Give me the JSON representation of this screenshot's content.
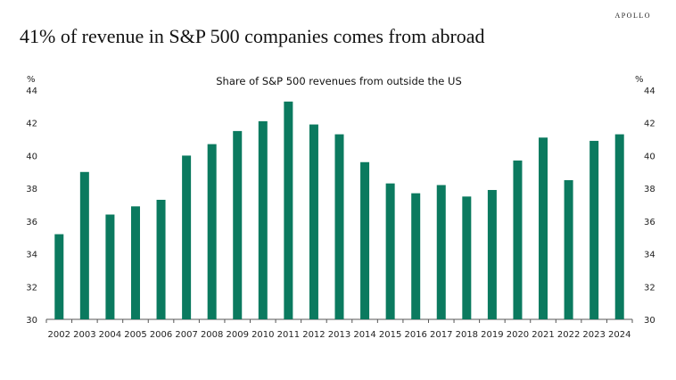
{
  "brand": "APOLLO",
  "headline": "41% of revenue in S&P 500 companies comes from abroad",
  "chart_data": {
    "type": "bar",
    "title": "Share of S&P 500 revenues from outside the US",
    "ylabel_left": "%",
    "ylabel_right": "%",
    "ylim": [
      30,
      44
    ],
    "yticks": [
      30,
      32,
      34,
      36,
      38,
      40,
      42,
      44
    ],
    "grid": false,
    "color": "#0b7a5f",
    "categories": [
      "2002",
      "2003",
      "2004",
      "2005",
      "2006",
      "2007",
      "2008",
      "2009",
      "2010",
      "2011",
      "2012",
      "2013",
      "2014",
      "2015",
      "2016",
      "2017",
      "2018",
      "2019",
      "2020",
      "2021",
      "2022",
      "2023",
      "2024"
    ],
    "values": [
      35.2,
      39.0,
      36.4,
      36.9,
      37.3,
      40.0,
      40.7,
      41.5,
      42.1,
      43.3,
      41.9,
      41.3,
      39.6,
      38.3,
      37.7,
      38.2,
      37.5,
      37.9,
      39.7,
      41.1,
      38.5,
      40.9,
      41.3
    ]
  }
}
